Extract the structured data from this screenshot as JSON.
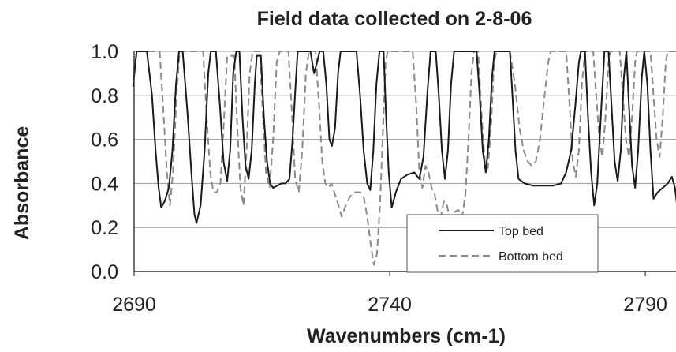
{
  "chart_data": {
    "type": "line",
    "title": "Field data collected on 2-8-06",
    "xlabel": "Wavenumbers (cm-1)",
    "ylabel": "Absorbance",
    "xlim": [
      2690,
      2796
    ],
    "ylim": [
      0,
      1
    ],
    "xticks": [
      "2690",
      "2740",
      "2790"
    ],
    "xtick_values": [
      2690,
      2740,
      2790
    ],
    "yticks": [
      "0.0",
      "0.2",
      "0.4",
      "0.6",
      "0.8",
      "1.0"
    ],
    "ytick_values": [
      0,
      0.2,
      0.4,
      0.6,
      0.8,
      1.0
    ],
    "grid": "horizontal",
    "legend_position": "bottom-right",
    "series": [
      {
        "name": "Top bed",
        "color": "#1a1a1a",
        "style": "solid",
        "points": [
          [
            2689.8,
            0.84
          ],
          [
            2690.5,
            1.0
          ],
          [
            2692.5,
            1.0
          ],
          [
            2693.5,
            0.8
          ],
          [
            2694.2,
            0.55
          ],
          [
            2694.8,
            0.38
          ],
          [
            2695.3,
            0.29
          ],
          [
            2696.0,
            0.32
          ],
          [
            2696.8,
            0.38
          ],
          [
            2697.5,
            0.55
          ],
          [
            2698.2,
            0.85
          ],
          [
            2698.8,
            1.0
          ],
          [
            2699.5,
            1.0
          ],
          [
            2700.5,
            0.7
          ],
          [
            2701.2,
            0.45
          ],
          [
            2701.8,
            0.26
          ],
          [
            2702.2,
            0.22
          ],
          [
            2703.0,
            0.3
          ],
          [
            2703.8,
            0.55
          ],
          [
            2704.5,
            0.9
          ],
          [
            2705.0,
            1.0
          ],
          [
            2706.0,
            1.0
          ],
          [
            2706.8,
            0.75
          ],
          [
            2707.5,
            0.5
          ],
          [
            2708.2,
            0.41
          ],
          [
            2708.8,
            0.55
          ],
          [
            2709.4,
            0.9
          ],
          [
            2710.0,
            1.0
          ],
          [
            2710.6,
            1.0
          ],
          [
            2711.2,
            0.7
          ],
          [
            2711.8,
            0.48
          ],
          [
            2712.4,
            0.42
          ],
          [
            2713.0,
            0.55
          ],
          [
            2713.6,
            0.85
          ],
          [
            2714.0,
            0.98
          ],
          [
            2714.8,
            0.98
          ],
          [
            2715.4,
            0.7
          ],
          [
            2716.0,
            0.5
          ],
          [
            2716.6,
            0.4
          ],
          [
            2717.2,
            0.38
          ],
          [
            2718.0,
            0.39
          ],
          [
            2718.8,
            0.4
          ],
          [
            2719.6,
            0.4
          ],
          [
            2720.4,
            0.42
          ],
          [
            2721.0,
            0.6
          ],
          [
            2721.6,
            0.85
          ],
          [
            2722.0,
            1.0
          ],
          [
            2724.5,
            1.0
          ],
          [
            2725.2,
            0.9
          ],
          [
            2725.8,
            0.95
          ],
          [
            2726.3,
            1.0
          ],
          [
            2727.0,
            1.0
          ],
          [
            2727.6,
            0.85
          ],
          [
            2728.2,
            0.6
          ],
          [
            2728.7,
            0.57
          ],
          [
            2729.3,
            0.65
          ],
          [
            2729.9,
            0.9
          ],
          [
            2730.4,
            1.0
          ],
          [
            2733.5,
            1.0
          ],
          [
            2734.2,
            0.8
          ],
          [
            2734.9,
            0.55
          ],
          [
            2735.6,
            0.4
          ],
          [
            2736.2,
            0.37
          ],
          [
            2736.8,
            0.55
          ],
          [
            2737.4,
            0.85
          ],
          [
            2738.0,
            1.0
          ],
          [
            2738.8,
            1.0
          ],
          [
            2739.3,
            0.7
          ],
          [
            2739.8,
            0.45
          ],
          [
            2740.4,
            0.29
          ],
          [
            2741.2,
            0.36
          ],
          [
            2742.2,
            0.42
          ],
          [
            2743.5,
            0.44
          ],
          [
            2744.8,
            0.45
          ],
          [
            2745.8,
            0.42
          ],
          [
            2746.6,
            0.52
          ],
          [
            2747.4,
            0.82
          ],
          [
            2748.0,
            1.0
          ],
          [
            2749.0,
            1.0
          ],
          [
            2749.6,
            0.8
          ],
          [
            2750.2,
            0.55
          ],
          [
            2750.8,
            0.42
          ],
          [
            2751.4,
            0.55
          ],
          [
            2752.0,
            0.85
          ],
          [
            2752.6,
            1.0
          ],
          [
            2757.0,
            1.0
          ],
          [
            2757.6,
            0.8
          ],
          [
            2758.2,
            0.55
          ],
          [
            2758.8,
            0.45
          ],
          [
            2759.4,
            0.6
          ],
          [
            2760.0,
            0.88
          ],
          [
            2760.5,
            1.0
          ],
          [
            2763.5,
            1.0
          ],
          [
            2764.0,
            0.8
          ],
          [
            2764.6,
            0.55
          ],
          [
            2765.2,
            0.42
          ],
          [
            2766.4,
            0.4
          ],
          [
            2768.0,
            0.39
          ],
          [
            2770.0,
            0.39
          ],
          [
            2772.0,
            0.39
          ],
          [
            2773.5,
            0.4
          ],
          [
            2774.5,
            0.45
          ],
          [
            2775.5,
            0.55
          ],
          [
            2776.3,
            0.75
          ],
          [
            2777.0,
            0.95
          ],
          [
            2777.4,
            1.0
          ],
          [
            2778.2,
            1.0
          ],
          [
            2778.8,
            0.7
          ],
          [
            2779.4,
            0.45
          ],
          [
            2780.0,
            0.3
          ],
          [
            2780.6,
            0.4
          ],
          [
            2781.4,
            0.75
          ],
          [
            2782.0,
            1.0
          ],
          [
            2782.8,
            1.0
          ],
          [
            2783.4,
            0.75
          ],
          [
            2784.0,
            0.5
          ],
          [
            2784.6,
            0.41
          ],
          [
            2785.2,
            0.55
          ],
          [
            2785.8,
            0.88
          ],
          [
            2786.3,
            1.0
          ],
          [
            2786.8,
            0.75
          ],
          [
            2787.4,
            0.48
          ],
          [
            2788.0,
            0.38
          ],
          [
            2788.6,
            0.55
          ],
          [
            2789.3,
            0.88
          ],
          [
            2789.8,
            1.0
          ],
          [
            2790.4,
            0.85
          ],
          [
            2791.0,
            0.55
          ],
          [
            2791.6,
            0.33
          ],
          [
            2792.4,
            0.36
          ],
          [
            2793.4,
            0.38
          ],
          [
            2794.4,
            0.4
          ],
          [
            2795.2,
            0.43
          ],
          [
            2795.8,
            0.38
          ],
          [
            2796.2,
            0.3
          ]
        ]
      },
      {
        "name": "Bottom bed",
        "color": "#8a8a8a",
        "style": "dashed",
        "points": [
          [
            2689.8,
            0.9
          ],
          [
            2690.6,
            1.0
          ],
          [
            2695.0,
            1.0
          ],
          [
            2695.8,
            0.7
          ],
          [
            2696.4,
            0.45
          ],
          [
            2697.0,
            0.3
          ],
          [
            2697.6,
            0.45
          ],
          [
            2698.3,
            0.8
          ],
          [
            2698.9,
            1.0
          ],
          [
            2703.5,
            1.0
          ],
          [
            2704.2,
            0.7
          ],
          [
            2704.9,
            0.45
          ],
          [
            2705.5,
            0.36
          ],
          [
            2706.2,
            0.36
          ],
          [
            2706.9,
            0.4
          ],
          [
            2707.6,
            0.7
          ],
          [
            2708.2,
            0.98
          ],
          [
            2709.6,
            0.98
          ],
          [
            2710.2,
            0.65
          ],
          [
            2710.8,
            0.38
          ],
          [
            2711.4,
            0.3
          ],
          [
            2712.0,
            0.55
          ],
          [
            2712.6,
            0.9
          ],
          [
            2713.2,
            1.0
          ],
          [
            2714.6,
            1.0
          ],
          [
            2715.2,
            0.7
          ],
          [
            2715.8,
            0.45
          ],
          [
            2716.5,
            0.38
          ],
          [
            2717.2,
            0.6
          ],
          [
            2717.9,
            0.95
          ],
          [
            2718.5,
            1.0
          ],
          [
            2720.2,
            1.0
          ],
          [
            2720.9,
            0.7
          ],
          [
            2721.5,
            0.42
          ],
          [
            2722.2,
            0.36
          ],
          [
            2722.9,
            0.55
          ],
          [
            2723.6,
            0.9
          ],
          [
            2724.2,
            1.0
          ],
          [
            2725.5,
            1.0
          ],
          [
            2726.2,
            0.75
          ],
          [
            2726.8,
            0.5
          ],
          [
            2727.4,
            0.4
          ],
          [
            2728.0,
            0.38
          ],
          [
            2728.6,
            0.4
          ],
          [
            2729.3,
            0.35
          ],
          [
            2730.0,
            0.3
          ],
          [
            2730.6,
            0.25
          ],
          [
            2731.4,
            0.3
          ],
          [
            2732.2,
            0.34
          ],
          [
            2733.2,
            0.36
          ],
          [
            2734.2,
            0.36
          ],
          [
            2734.9,
            0.34
          ],
          [
            2735.6,
            0.25
          ],
          [
            2736.3,
            0.12
          ],
          [
            2736.9,
            0.03
          ],
          [
            2737.5,
            0.08
          ],
          [
            2738.1,
            0.3
          ],
          [
            2738.7,
            0.65
          ],
          [
            2739.2,
            0.95
          ],
          [
            2739.6,
            1.0
          ],
          [
            2744.5,
            1.0
          ],
          [
            2745.2,
            0.75
          ],
          [
            2745.8,
            0.45
          ],
          [
            2746.4,
            0.38
          ],
          [
            2747.0,
            0.48
          ],
          [
            2747.6,
            0.45
          ],
          [
            2748.2,
            0.38
          ],
          [
            2748.8,
            0.35
          ],
          [
            2749.4,
            0.27
          ],
          [
            2750.0,
            0.25
          ],
          [
            2750.6,
            0.32
          ],
          [
            2751.2,
            0.3
          ],
          [
            2751.8,
            0.24
          ],
          [
            2752.6,
            0.27
          ],
          [
            2753.4,
            0.28
          ],
          [
            2754.2,
            0.25
          ],
          [
            2754.8,
            0.35
          ],
          [
            2755.4,
            0.6
          ],
          [
            2756.0,
            0.9
          ],
          [
            2756.5,
            1.0
          ],
          [
            2757.3,
            1.0
          ],
          [
            2758.0,
            0.7
          ],
          [
            2758.6,
            0.5
          ],
          [
            2759.2,
            0.47
          ],
          [
            2759.8,
            0.65
          ],
          [
            2760.4,
            0.95
          ],
          [
            2760.9,
            1.0
          ],
          [
            2763.5,
            1.0
          ],
          [
            2764.5,
            0.85
          ],
          [
            2765.4,
            0.65
          ],
          [
            2766.2,
            0.55
          ],
          [
            2767.0,
            0.5
          ],
          [
            2767.8,
            0.48
          ],
          [
            2768.6,
            0.5
          ],
          [
            2769.4,
            0.6
          ],
          [
            2770.2,
            0.78
          ],
          [
            2771.0,
            0.95
          ],
          [
            2771.5,
            1.0
          ],
          [
            2774.5,
            1.0
          ],
          [
            2775.2,
            0.75
          ],
          [
            2775.8,
            0.5
          ],
          [
            2776.4,
            0.43
          ],
          [
            2777.0,
            0.55
          ],
          [
            2777.6,
            0.85
          ],
          [
            2778.2,
            1.0
          ],
          [
            2779.8,
            1.0
          ],
          [
            2780.4,
            0.8
          ],
          [
            2781.0,
            0.6
          ],
          [
            2781.6,
            0.52
          ],
          [
            2782.2,
            0.7
          ],
          [
            2782.8,
            0.95
          ],
          [
            2783.2,
            1.0
          ],
          [
            2785.0,
            1.0
          ],
          [
            2785.6,
            0.8
          ],
          [
            2786.2,
            0.6
          ],
          [
            2786.8,
            0.52
          ],
          [
            2787.4,
            0.7
          ],
          [
            2788.0,
            0.95
          ],
          [
            2788.4,
            1.0
          ],
          [
            2791.0,
            1.0
          ],
          [
            2791.6,
            0.8
          ],
          [
            2792.2,
            0.6
          ],
          [
            2792.8,
            0.52
          ],
          [
            2793.4,
            0.7
          ],
          [
            2794.0,
            0.95
          ],
          [
            2794.4,
            1.0
          ],
          [
            2796.2,
            1.0
          ]
        ]
      }
    ]
  }
}
